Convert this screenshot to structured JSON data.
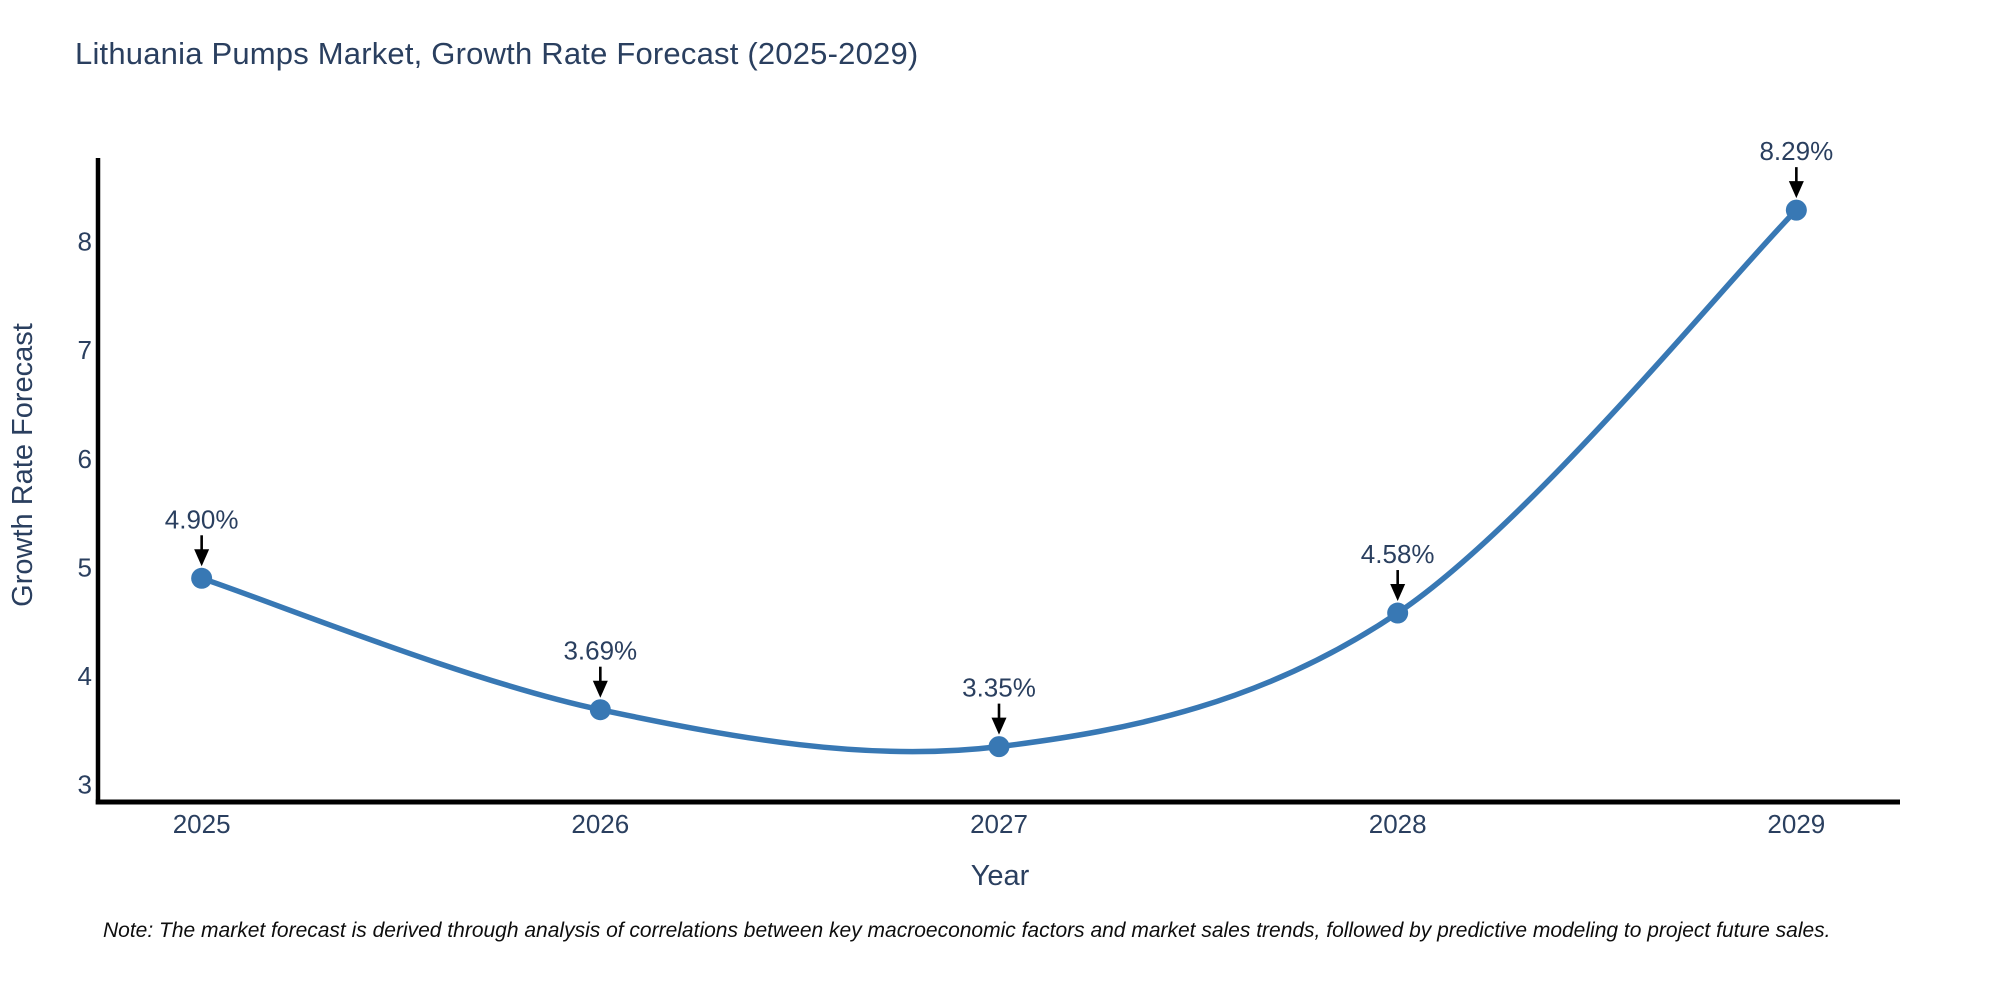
{
  "header": {
    "title": "Lithuania Pumps Market, Growth Rate Forecast (2025-2029)"
  },
  "footer": {
    "note": "Note: The market forecast is derived through analysis of correlations between key macroeconomic factors and market sales trends, followed by predictive modeling to project future sales."
  },
  "colors": {
    "line": "#3878b4",
    "marker": "#3878b4",
    "chart_text": "#2a3f5f",
    "axis": "#000000",
    "arrow": "#000000",
    "background": "#ffffff"
  },
  "chart_data": {
    "type": "line",
    "title": "Lithuania Pumps Market, Growth Rate Forecast (2025-2029)",
    "xlabel": "Year",
    "ylabel": "Growth Rate Forecast",
    "x": [
      2025,
      2026,
      2027,
      2028,
      2029
    ],
    "values": [
      4.9,
      3.69,
      3.35,
      4.58,
      8.29
    ],
    "labels": [
      "4.90%",
      "3.69%",
      "3.35%",
      "4.58%",
      "8.29%"
    ],
    "series_name": "Growth Rate Forecast",
    "line_shape": "spline",
    "markers": true,
    "annotations_arrows": true,
    "yticks": [
      3,
      4,
      5,
      6,
      7,
      8
    ],
    "xticks": [
      "2025",
      "2026",
      "2027",
      "2028",
      "2029"
    ],
    "ylim": [
      2.84,
      8.77
    ],
    "xlim": [
      2024.74,
      2029.26
    ],
    "grid": false,
    "legend": false
  }
}
